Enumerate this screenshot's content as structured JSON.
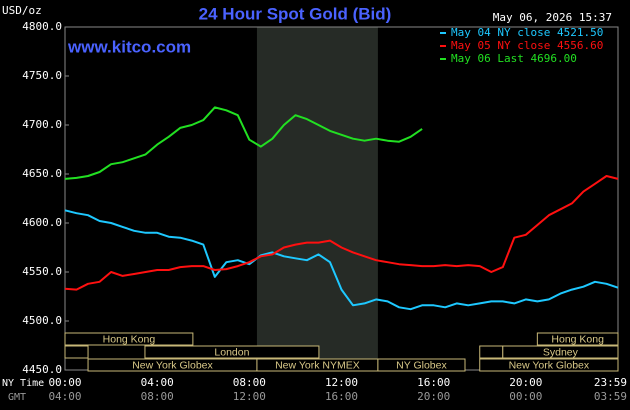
{
  "chart_data": {
    "type": "line",
    "title": "24 Hour Spot Gold (Bid)",
    "timestamp": "May 06, 2026 15:37",
    "watermark": "www.kitco.com",
    "ylabel": "USD/oz",
    "x_axis_label": "NY Time",
    "x2_axis_label": "GMT",
    "legend": "upper right",
    "grid": false,
    "xlim": [
      0,
      24
    ],
    "xticks": [
      {
        "value": 0,
        "label": "00:00"
      },
      {
        "value": 4,
        "label": "04:00"
      },
      {
        "value": 8,
        "label": "08:00"
      },
      {
        "value": 12,
        "label": "12:00"
      },
      {
        "value": 16,
        "label": "16:00"
      },
      {
        "value": 20,
        "label": "20:00"
      },
      {
        "value": 23.98,
        "label": "23:59"
      }
    ],
    "gmt_tick_labels": [
      "04:00",
      "08:00",
      "12:00",
      "16:00",
      "20:00",
      "00:00",
      "03:59"
    ],
    "ylim": [
      4450,
      4800
    ],
    "yticks": [
      {
        "value": 4450,
        "label": "4450.0"
      },
      {
        "value": 4500,
        "label": "4500.0"
      },
      {
        "value": 4550,
        "label": "4550.0"
      },
      {
        "value": 4600,
        "label": "4600.0"
      },
      {
        "value": 4650,
        "label": "4650.0"
      },
      {
        "value": 4700,
        "label": "4700.0"
      },
      {
        "value": 4750,
        "label": "4750.0"
      },
      {
        "value": 4800,
        "label": "4800.0"
      }
    ],
    "highlight_x": [
      8.33,
      13.58
    ],
    "sessions": [
      {
        "label": "Hong Kong",
        "start": 0,
        "end": 5.55,
        "row": 0
      },
      {
        "label": "Hong Kong",
        "start": 20.5,
        "end": 24,
        "row": 0
      },
      {
        "start": 0,
        "end": 1,
        "row": 1
      },
      {
        "label": "London",
        "start": 3.47,
        "end": 11.02,
        "row": 1
      },
      {
        "start": 18,
        "end": 19,
        "row": 1
      },
      {
        "label": "Sydney",
        "start": 19,
        "end": 24,
        "row": 1
      },
      {
        "label": "New York Globex",
        "start": 1,
        "end": 8.33,
        "row": 2
      },
      {
        "label": "New York NYMEX",
        "start": 8.33,
        "end": 13.58,
        "row": 2
      },
      {
        "label": "NY Globex",
        "start": 13.58,
        "end": 17.36,
        "row": 2
      },
      {
        "label": "New York Globex",
        "start": 18,
        "end": 24,
        "row": 2
      }
    ],
    "x": [
      0,
      0.5,
      1,
      1.5,
      2,
      2.5,
      3,
      3.5,
      4,
      4.5,
      5,
      5.5,
      6,
      6.5,
      7,
      7.5,
      8,
      8.5,
      9,
      9.5,
      10,
      10.5,
      11,
      11.5,
      12,
      12.5,
      13,
      13.5,
      14,
      14.5,
      15,
      15.5,
      16,
      16.5,
      17,
      17.5,
      18,
      18.5,
      19,
      19.5,
      20,
      20.5,
      21,
      21.5,
      22,
      22.5,
      23,
      23.5,
      24
    ],
    "series": [
      {
        "name": "May 04 NY close 4521.50",
        "color": "#1ec8ff",
        "values": [
          4613,
          4610,
          4608,
          4602,
          4600,
          4596,
          4592,
          4590,
          4590,
          4586,
          4585,
          4582,
          4578,
          4545,
          4560,
          4562,
          4558,
          4567,
          4570,
          4566,
          4564,
          4562,
          4568,
          4560,
          4532,
          4516,
          4518,
          4522,
          4520,
          4514,
          4512,
          4516,
          4516,
          4514,
          4518,
          4516,
          4518,
          4520,
          4520,
          4518,
          4522,
          4520,
          4522,
          4528,
          4532,
          4535,
          4540,
          4538,
          4534
        ]
      },
      {
        "name": "May 05 NY close 4556.60",
        "color": "#ff1010",
        "values": [
          4533,
          4532,
          4538,
          4540,
          4550,
          4546,
          4548,
          4550,
          4552,
          4552,
          4555,
          4556,
          4556,
          4552,
          4553,
          4556,
          4560,
          4566,
          4568,
          4575,
          4578,
          4580,
          4580,
          4582,
          4575,
          4570,
          4566,
          4562,
          4560,
          4558,
          4557,
          4556,
          4556,
          4557,
          4556,
          4557,
          4556,
          4550,
          4555,
          4585,
          4588,
          4598,
          4608,
          4614,
          4620,
          4632,
          4640,
          4648,
          4645
        ]
      },
      {
        "name": "May 06 Last 4696.00",
        "color": "#22e022",
        "values": [
          4645,
          4646,
          4648,
          4652,
          4660,
          4662,
          4666,
          4670,
          4680,
          4688,
          4697,
          4700,
          4705,
          4718,
          4715,
          4710,
          4685,
          4678,
          4686,
          4700,
          4710,
          4706,
          4700,
          4694,
          4690,
          4686,
          4684,
          4686,
          4684,
          4683,
          4688,
          4696,
          null,
          null,
          null,
          null,
          null,
          null,
          null,
          null,
          null,
          null,
          null,
          null,
          null,
          null,
          null,
          null,
          null
        ]
      }
    ]
  }
}
